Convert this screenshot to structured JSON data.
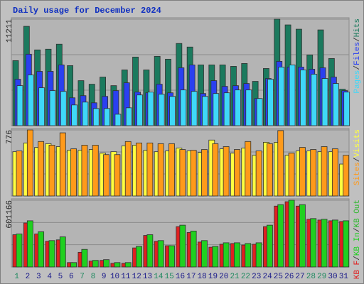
{
  "chart_data": {
    "type": "bar",
    "title": "Daily usage for December 2024",
    "separator": "/",
    "categories": [
      "1",
      "2",
      "3",
      "4",
      "5",
      "6",
      "7",
      "8",
      "9",
      "10",
      "11",
      "12",
      "13",
      "14",
      "15",
      "16",
      "17",
      "18",
      "19",
      "20",
      "21",
      "22",
      "23",
      "24",
      "25",
      "26",
      "27",
      "28",
      "29",
      "30",
      "31"
    ],
    "highlight_categories": [
      0,
      6,
      7,
      13,
      14,
      20,
      21,
      27,
      28
    ],
    "highlight_color": "#208a60",
    "category_color": "#1a1a8a",
    "panels": [
      {
        "ylim": [
          0,
          11211
        ],
        "yticks": [
          11211
        ],
        "grid": true,
        "legend_reverse": true,
        "series": [
          {
            "name": "Hits",
            "color": "#1b7a5e",
            "values": [
              6847,
              10458,
              7976,
              8051,
              8578,
              6320,
              4740,
              4364,
              5117,
              4214,
              5869,
              7223,
              5869,
              7298,
              6998,
              8653,
              8277,
              6396,
              6396,
              6396,
              6245,
              6546,
              4665,
              6019,
              11211,
              10609,
              10158,
              7449,
              10082,
              7073,
              3837
            ]
          },
          {
            "name": "Files",
            "color": "#2a40f0",
            "values": [
              4891,
              7524,
              5718,
              5718,
              6395,
              2934,
              3160,
              2408,
              3085,
              3687,
              4514,
              3536,
              3461,
              4364,
              3461,
              6094,
              6395,
              3386,
              4740,
              4138,
              4213,
              4439,
              2859,
              4966,
              6772,
              6170,
              6170,
              5944,
              6094,
              5116,
              3687
            ]
          },
          {
            "name": "Pages",
            "color": "#3fd8f8",
            "values": [
              4213,
              5342,
              3988,
              3687,
              3612,
              2182,
              2483,
              1806,
              1806,
              1204,
              1881,
              3235,
              3536,
              3311,
              3085,
              3762,
              3612,
              3085,
              3386,
              3461,
              3762,
              3762,
              2859,
              4891,
              6170,
              6395,
              5869,
              5417,
              4966,
              4439,
              3536
            ]
          }
        ]
      },
      {
        "ylim": [
          0,
          776
        ],
        "yticks": [
          776
        ],
        "grid": true,
        "legend_reverse": true,
        "series": [
          {
            "name": "Visits",
            "color": "#ffff40",
            "values": [
              520,
              623,
              571,
              614,
              580,
              537,
              537,
              546,
              503,
              520,
              589,
              597,
              537,
              520,
              529,
              563,
              529,
              512,
              657,
              554,
              503,
              563,
              478,
              631,
              631,
              478,
              529,
              529,
              520,
              520,
              375
            ]
          },
          {
            "name": "Sites",
            "color": "#ff9a1a",
            "values": [
              529,
              776,
              640,
              597,
              742,
              554,
              597,
              597,
              486,
              486,
              640,
              623,
              623,
              614,
              614,
              546,
              537,
              546,
              614,
              580,
              546,
              640,
              529,
              614,
              768,
              503,
              571,
              546,
              580,
              554,
              478
            ]
          }
        ]
      },
      {
        "ylim": [
          0,
          601166
        ],
        "yticks": [
          601166
        ],
        "grid": true,
        "legend_reverse": false,
        "series": [
          {
            "name": "KB F",
            "color": "#e02020",
            "values": [
              290664,
              396360,
              297270,
              231210,
              244422,
              39636,
              132120,
              52848,
              59454,
              33030,
              33030,
              171756,
              284058,
              231210,
              191574,
              363330,
              310482,
              224604,
              178362,
              204786,
              211392,
              198180,
              204786,
              363330,
              548298,
              587934,
              548298,
              429390,
              422784,
              416178,
              409572
            ]
          },
          {
            "name": "KB In",
            "color": "#20d020",
            "values": [
              297270,
              416178,
              317088,
              237816,
              270846,
              39636,
              158544,
              59454,
              66060,
              39636,
              39636,
              184968,
              290664,
              237816,
              191574,
              376542,
              323694,
              237816,
              184968,
              217998,
              217998,
              211392,
              217998,
              376542,
              561510,
              601166,
              561510,
              435996,
              429390,
              422784,
              416178
            ]
          }
        ],
        "legend_extra": [
          {
            "name": "KB Out",
            "color": "#2eb82e"
          }
        ]
      }
    ]
  }
}
